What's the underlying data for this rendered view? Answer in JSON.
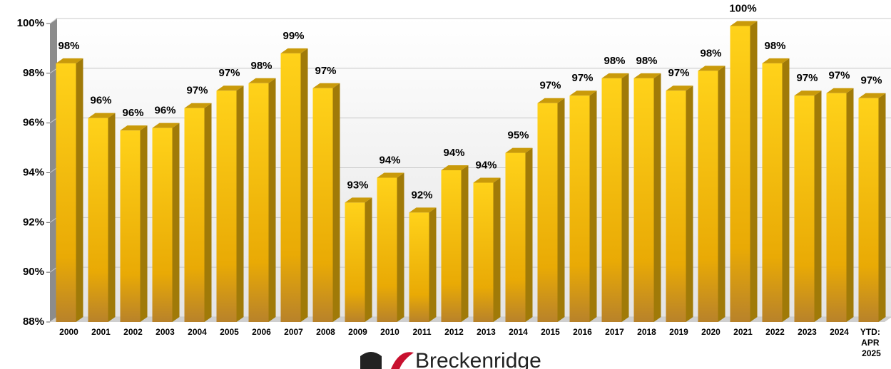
{
  "chart_data": {
    "type": "bar",
    "categories": [
      "2000",
      "2001",
      "2002",
      "2003",
      "2004",
      "2005",
      "2006",
      "2007",
      "2008",
      "2009",
      "2010",
      "2011",
      "2012",
      "2013",
      "2014",
      "2015",
      "2016",
      "2017",
      "2018",
      "2019",
      "2020",
      "2021",
      "2022",
      "2023",
      "2024",
      "YTD: APR 2025"
    ],
    "values": [
      98.4,
      96.2,
      95.7,
      95.8,
      96.6,
      97.3,
      97.6,
      98.8,
      97.4,
      92.8,
      93.8,
      92.4,
      94.1,
      93.6,
      94.8,
      96.8,
      97.1,
      97.8,
      97.8,
      97.3,
      98.1,
      99.9,
      98.4,
      97.1,
      97.2,
      97.0
    ],
    "value_labels": [
      "98%",
      "96%",
      "96%",
      "96%",
      "97%",
      "97%",
      "98%",
      "99%",
      "97%",
      "93%",
      "94%",
      "92%",
      "94%",
      "94%",
      "95%",
      "97%",
      "97%",
      "98%",
      "98%",
      "97%",
      "98%",
      "100%",
      "98%",
      "97%",
      "97%",
      "97%"
    ],
    "color": "#f2b705",
    "ylim": [
      88,
      100
    ],
    "yticks": [
      {
        "value": 88,
        "label": "88%"
      },
      {
        "value": 90,
        "label": "90%"
      },
      {
        "value": 92,
        "label": "92%"
      },
      {
        "value": 94,
        "label": "94%"
      },
      {
        "value": 96,
        "label": "96%"
      },
      {
        "value": 98,
        "label": "98%"
      },
      {
        "value": 100,
        "label": "100%"
      }
    ],
    "grid": true,
    "logo_text": "Breckenridge"
  }
}
